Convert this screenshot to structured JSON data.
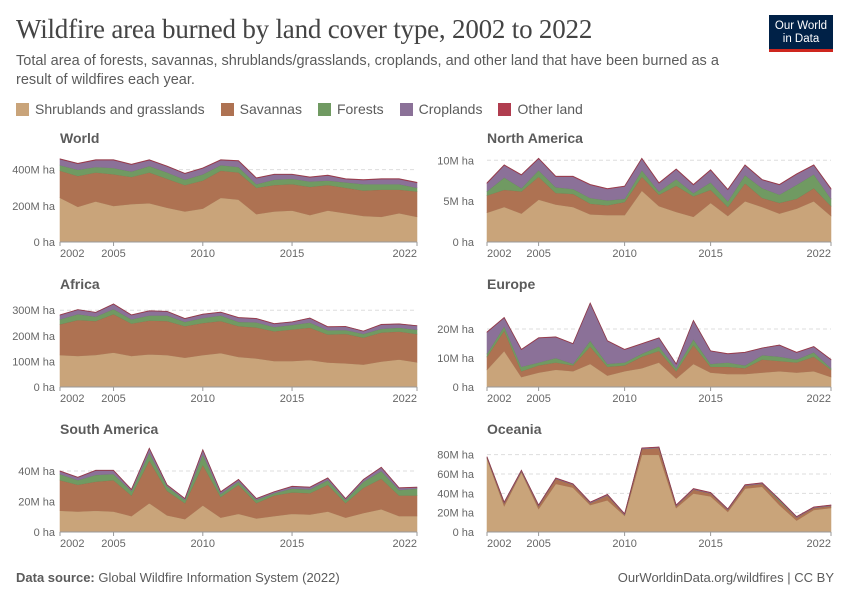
{
  "title": "Wildfire area burned by land cover type, 2002 to 2022",
  "subtitle": "Total area of forests, savannas, shrublands/grasslands, croplands, and other land that have been burned as a result of wildfires each year.",
  "logo": {
    "line1": "Our World",
    "line2": "in Data"
  },
  "footer": {
    "source_label": "Data source:",
    "source": "Global Wildfire Information System (2022)",
    "right": "OurWorldinData.org/wildfires | CC BY"
  },
  "chart_data": {
    "type": "area",
    "stacked": true,
    "grid": "horizontal dashed",
    "legend_placement": "top",
    "x": [
      2002,
      2003,
      2004,
      2005,
      2006,
      2007,
      2008,
      2009,
      2010,
      2011,
      2012,
      2013,
      2014,
      2015,
      2016,
      2017,
      2018,
      2019,
      2020,
      2021,
      2022
    ],
    "x_ticks": [
      "2002",
      "2005",
      "2010",
      "2015",
      "2022"
    ],
    "series_meta": [
      {
        "key": "shrub",
        "name": "Shrublands and grasslands",
        "color": "#c9a47a"
      },
      {
        "key": "savanna",
        "name": "Savannas",
        "color": "#ae7252"
      },
      {
        "key": "forest",
        "name": "Forests",
        "color": "#709a62"
      },
      {
        "key": "crop",
        "name": "Croplands",
        "color": "#8b7198"
      },
      {
        "key": "other",
        "name": "Other land",
        "color": "#b03d4f"
      }
    ],
    "panels": [
      {
        "title": "World",
        "unit": "M ha",
        "ylim": [
          0,
          470
        ],
        "ticks": [
          0,
          200,
          400
        ],
        "tick_labels": [
          "0 ha",
          "200M ha",
          "400M ha"
        ],
        "series": {
          "shrub": [
            245,
            195,
            225,
            200,
            210,
            215,
            190,
            170,
            185,
            245,
            235,
            155,
            170,
            175,
            150,
            175,
            160,
            145,
            140,
            160,
            140
          ],
          "savanna": [
            150,
            170,
            160,
            175,
            150,
            170,
            160,
            145,
            155,
            150,
            150,
            145,
            145,
            145,
            155,
            140,
            140,
            140,
            150,
            130,
            140
          ],
          "forest": [
            30,
            35,
            30,
            35,
            30,
            35,
            35,
            30,
            35,
            30,
            30,
            20,
            30,
            30,
            30,
            25,
            30,
            35,
            30,
            30,
            20
          ],
          "crop": [
            33,
            33,
            38,
            43,
            38,
            33,
            33,
            33,
            33,
            28,
            33,
            33,
            28,
            23,
            23,
            28,
            18,
            23,
            28,
            28,
            28
          ],
          "other": [
            2,
            2,
            2,
            2,
            2,
            2,
            2,
            2,
            2,
            2,
            2,
            2,
            2,
            2,
            2,
            2,
            2,
            2,
            2,
            2,
            2
          ]
        }
      },
      {
        "title": "North America",
        "unit": "M ha",
        "ylim": [
          0,
          10.4
        ],
        "ticks": [
          0,
          5,
          10
        ],
        "tick_labels": [
          "0 ha",
          "5M ha",
          "10M ha"
        ],
        "series": {
          "shrub": [
            3.6,
            4.3,
            3.5,
            5.2,
            4.6,
            4.3,
            3.4,
            3.3,
            3.3,
            6.3,
            4.4,
            3.7,
            3.1,
            4.8,
            3.2,
            5.0,
            4.3,
            3.5,
            4.1,
            5.0,
            3.2
          ],
          "savanna": [
            2.1,
            2.1,
            2.7,
            2.8,
            1.4,
            1.6,
            1.3,
            1.2,
            1.6,
            1.7,
            1.4,
            3.2,
            2.5,
            1.6,
            1.1,
            2.2,
            1.1,
            1.3,
            1.2,
            1.6,
            1.2
          ],
          "forest": [
            0.5,
            1.5,
            0.4,
            0.8,
            0.7,
            0.6,
            0.7,
            0.6,
            0.4,
            0.8,
            0.4,
            0.8,
            0.4,
            0.9,
            0.7,
            1.0,
            1.2,
            1.0,
            1.7,
            1.7,
            0.9
          ],
          "crop": [
            1.0,
            1.5,
            1.6,
            1.4,
            1.3,
            1.5,
            1.6,
            1.4,
            1.5,
            1.4,
            1.0,
            1.2,
            1.0,
            1.5,
            1.4,
            1.2,
            1.0,
            1.2,
            1.3,
            1.1,
            1.2
          ],
          "other": [
            0.05,
            0.05,
            0.05,
            0.05,
            0.05,
            0.05,
            0.05,
            0.05,
            0.05,
            0.05,
            0.05,
            0.05,
            0.05,
            0.05,
            0.05,
            0.05,
            0.05,
            0.05,
            0.05,
            0.05,
            0.05
          ]
        }
      },
      {
        "title": "Africa",
        "unit": "M ha",
        "ylim": [
          0,
          340
        ],
        "ticks": [
          0,
          100,
          200,
          300
        ],
        "tick_labels": [
          "0 ha",
          "100M ha",
          "200M ha",
          "300M ha"
        ],
        "series": {
          "shrub": [
            125,
            122,
            126,
            135,
            122,
            128,
            125,
            115,
            125,
            133,
            118,
            112,
            102,
            102,
            106,
            96,
            93,
            88,
            100,
            108,
            97
          ],
          "savanna": [
            120,
            140,
            132,
            150,
            126,
            132,
            133,
            123,
            125,
            125,
            120,
            121,
            116,
            123,
            126,
            109,
            115,
            105,
            113,
            109,
            110
          ],
          "forest": [
            20,
            23,
            17,
            20,
            17,
            20,
            22,
            17,
            20,
            22,
            17,
            20,
            17,
            18,
            20,
            17,
            15,
            15,
            15,
            15,
            17
          ],
          "crop": [
            16,
            17,
            16,
            19,
            16,
            17,
            15,
            12,
            14,
            12,
            16,
            14,
            12,
            11,
            17,
            13,
            13,
            10,
            16,
            14,
            15
          ],
          "other": [
            1,
            1,
            1,
            1,
            1,
            1,
            1,
            1,
            1,
            1,
            1,
            1,
            1,
            1,
            1,
            1,
            1,
            1,
            1,
            1,
            1
          ]
        }
      },
      {
        "title": "Europe",
        "unit": "M ha",
        "ylim": [
          0,
          30
        ],
        "ticks": [
          0,
          10,
          20
        ],
        "tick_labels": [
          "0 ha",
          "10M ha",
          "20M ha"
        ],
        "series": {
          "shrub": [
            6,
            12.5,
            3.5,
            5,
            6,
            5.5,
            8,
            4,
            5.5,
            6.5,
            8.5,
            3,
            8,
            5,
            4.5,
            4.5,
            5,
            5.5,
            5,
            5.5,
            3.5
          ],
          "savanna": [
            4.5,
            7,
            2,
            2.5,
            2.5,
            2,
            6,
            3,
            2,
            4,
            4,
            2.5,
            6.5,
            2,
            2.5,
            2,
            4.5,
            3.5,
            3.5,
            5,
            2.5
          ],
          "forest": [
            1,
            1.5,
            1.5,
            1,
            1.5,
            0.5,
            2,
            1,
            1,
            1,
            1.5,
            1,
            2,
            1,
            1.5,
            1,
            1.5,
            1.5,
            1,
            1.5,
            0.5
          ],
          "crop": [
            7.4,
            2.9,
            5.9,
            8.4,
            7.2,
            6.9,
            12.9,
            7.9,
            4.4,
            3.4,
            2.9,
            1.4,
            6.4,
            4.4,
            2.9,
            4.4,
            2.4,
            3.9,
            2.4,
            1.9,
            2.9
          ],
          "other": [
            0.1,
            0.1,
            0.1,
            0.1,
            0.1,
            0.1,
            0.1,
            0.1,
            0.1,
            0.1,
            0.1,
            0.1,
            0.1,
            0.1,
            0.1,
            0.1,
            0.1,
            0.1,
            0.1,
            0.1,
            0.1
          ]
        }
      },
      {
        "title": "South America",
        "unit": "M ha",
        "ylim": [
          0,
          57
        ],
        "ticks": [
          0,
          20,
          40
        ],
        "tick_labels": [
          "0 ha",
          "20M ha",
          "40M ha"
        ],
        "series": {
          "shrub": [
            14,
            13.5,
            14,
            13.5,
            10.5,
            19,
            11,
            8.5,
            17.5,
            9.5,
            12,
            9,
            10.5,
            12,
            11.5,
            13.5,
            9.5,
            12.5,
            15,
            10.5,
            10.5
          ],
          "savanna": [
            20,
            17.5,
            19,
            20.5,
            13.5,
            28,
            16,
            10.5,
            26.5,
            13.5,
            19,
            10,
            13.5,
            14,
            14,
            17.5,
            9.5,
            16.5,
            20,
            13.5,
            13.5
          ],
          "forest": [
            4,
            3,
            4.5,
            4,
            3,
            5,
            3,
            2,
            7,
            2,
            2,
            2,
            1.5,
            2.5,
            2.5,
            3,
            2,
            4,
            5,
            3.5,
            4.5
          ],
          "crop": [
            1.8,
            1.8,
            2.8,
            2.3,
            0.8,
            2.8,
            0.8,
            0.8,
            2.8,
            1.3,
            1.3,
            0.8,
            0.8,
            1.3,
            1.3,
            1.3,
            0.8,
            1.3,
            2.3,
            1.3,
            0.8
          ],
          "other": [
            0.2,
            0.2,
            0.2,
            0.2,
            0.2,
            0.2,
            0.2,
            0.2,
            0.2,
            0.2,
            0.2,
            0.2,
            0.2,
            0.2,
            0.2,
            0.2,
            0.2,
            0.2,
            0.2,
            0.2,
            0.2
          ]
        }
      },
      {
        "title": "Oceania",
        "unit": "M ha",
        "ylim": [
          0,
          90
        ],
        "ticks": [
          0,
          20,
          40,
          60,
          80
        ],
        "tick_labels": [
          "0 ha",
          "20M ha",
          "40M ha",
          "60M ha",
          "80M ha"
        ],
        "series": {
          "shrub": [
            76,
            27,
            62,
            24,
            50,
            46,
            28,
            33,
            17,
            80,
            80,
            25,
            40,
            37,
            21,
            45,
            47,
            28,
            12,
            23,
            25
          ],
          "savanna": [
            1,
            3,
            1,
            3,
            5,
            3,
            2,
            5,
            1,
            6,
            7,
            2,
            4,
            3,
            2,
            3,
            3,
            4,
            3,
            2,
            2
          ],
          "forest": [
            0,
            0,
            0,
            0,
            0,
            0,
            0,
            0,
            0,
            0,
            0,
            0,
            0,
            0,
            0,
            0,
            0,
            1,
            0,
            0,
            0
          ],
          "crop": [
            0.7,
            0.7,
            0.7,
            0.7,
            0.7,
            0.7,
            0.7,
            0.7,
            0.7,
            0.7,
            0.7,
            0.7,
            0.7,
            0.7,
            0.7,
            0.7,
            0.7,
            0.7,
            0.7,
            0.7,
            0.7
          ],
          "other": [
            0.3,
            0.3,
            0.3,
            0.3,
            0.3,
            0.3,
            0.3,
            0.3,
            0.3,
            0.3,
            0.3,
            0.3,
            0.3,
            0.3,
            0.3,
            0.3,
            0.3,
            0.3,
            0.3,
            0.3,
            0.3
          ]
        }
      }
    ]
  }
}
